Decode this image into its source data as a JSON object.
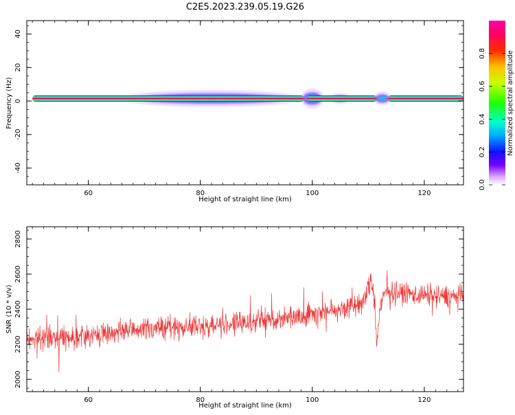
{
  "title": "C2E5.2023.239.05.19.G26",
  "chart_data": [
    {
      "type": "heatmap",
      "xlabel": "Height of straight line (km)",
      "ylabel": "Frequency (Hz)",
      "xlim": [
        49,
        127
      ],
      "ylim": [
        -50,
        48
      ],
      "x_ticks": [
        60,
        80,
        100,
        120
      ],
      "y_ticks": [
        -40,
        -20,
        0,
        20,
        40
      ],
      "colorbar": {
        "label": "Normalized spectral amplitude",
        "range": [
          0,
          1
        ],
        "ticks": [
          0.0,
          0.2,
          0.4,
          0.6,
          0.8
        ]
      },
      "ridge": {
        "frequency": 1.5,
        "x_start": 50,
        "x_end": 127,
        "gaps": [
          [
            98.5,
            99
          ],
          [
            111.5,
            113.5
          ]
        ]
      },
      "broadening": [
        {
          "x_range": [
            66,
            98
          ],
          "width_hz": 5
        },
        {
          "x_range": [
            98,
            102
          ],
          "width_hz": 6
        },
        {
          "x_range": [
            103,
            107
          ],
          "width_hz": 3
        },
        {
          "x_range": [
            111,
            114
          ],
          "width_hz": 4
        }
      ]
    },
    {
      "type": "line",
      "xlabel": "Height of straight line (km)",
      "ylabel": "SNR (10 * v/v)",
      "xlim": [
        49,
        127
      ],
      "ylim": [
        1930,
        2870
      ],
      "x_ticks": [
        60,
        80,
        100,
        120
      ],
      "y_ticks": [
        2000,
        2200,
        2400,
        2600,
        2800
      ],
      "series_color": "#ee3333",
      "trend": [
        {
          "x": 49,
          "y": 2230
        },
        {
          "x": 60,
          "y": 2250
        },
        {
          "x": 70,
          "y": 2290
        },
        {
          "x": 80,
          "y": 2300
        },
        {
          "x": 90,
          "y": 2330
        },
        {
          "x": 97,
          "y": 2360
        },
        {
          "x": 100,
          "y": 2380
        },
        {
          "x": 105,
          "y": 2400
        },
        {
          "x": 109,
          "y": 2430
        },
        {
          "x": 110.5,
          "y": 2560
        },
        {
          "x": 111,
          "y": 2500
        },
        {
          "x": 111.5,
          "y": 2200
        },
        {
          "x": 112,
          "y": 2380
        },
        {
          "x": 113,
          "y": 2500
        },
        {
          "x": 120,
          "y": 2480
        },
        {
          "x": 127,
          "y": 2470
        }
      ],
      "noise_amplitude": 90
    }
  ]
}
